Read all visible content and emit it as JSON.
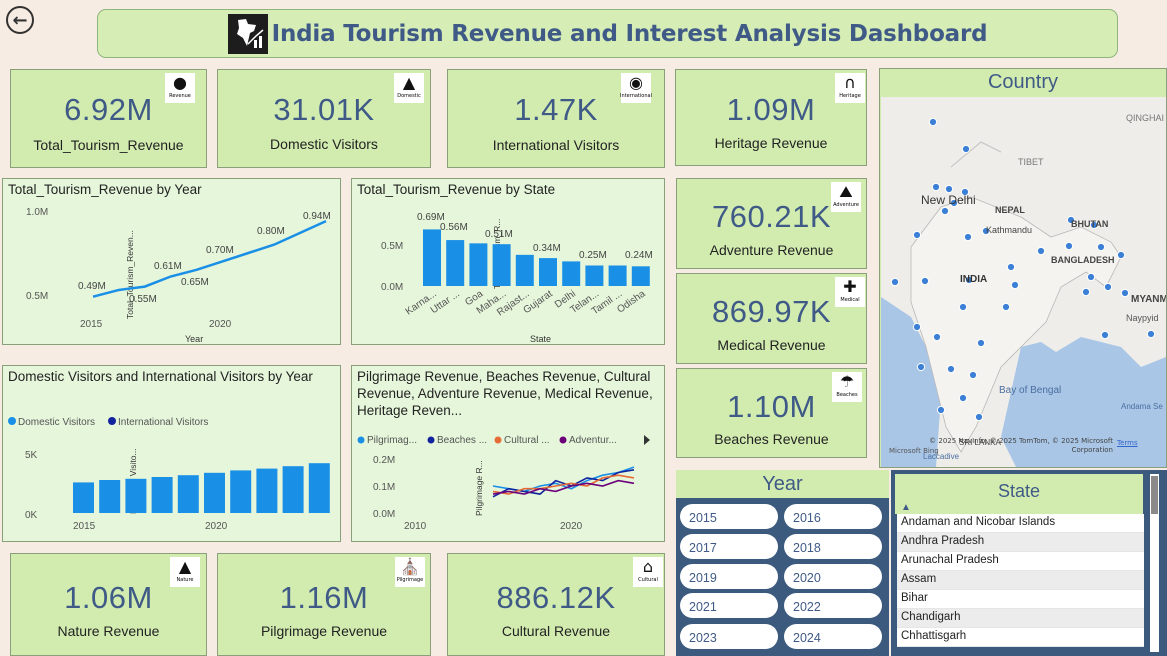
{
  "dashboard_title": "India Tourism Revenue and Interest Analysis Dashboard",
  "kpis": {
    "total_revenue": {
      "value": "6.92M",
      "label": "Total_Tourism_Revenue",
      "badge": "Revenue"
    },
    "domestic": {
      "value": "31.01K",
      "label": "Domestic Visitors",
      "badge": "Domestic"
    },
    "international": {
      "value": "1.47K",
      "label": "International Visitors",
      "badge": "International"
    },
    "heritage": {
      "value": "1.09M",
      "label": "Heritage Revenue",
      "badge": "Heritage"
    },
    "adventure": {
      "value": "760.21K",
      "label": "Adventure Revenue",
      "badge": "Adventure"
    },
    "medical": {
      "value": "869.97K",
      "label": "Medical Revenue",
      "badge": "Medical"
    },
    "beaches": {
      "value": "1.10M",
      "label": "Beaches Revenue",
      "badge": "Beaches"
    },
    "nature": {
      "value": "1.06M",
      "label": "Nature Revenue",
      "badge": "Nature"
    },
    "pilgrimage": {
      "value": "1.16M",
      "label": "Pilgrimage Revenue",
      "badge": "Pilgrimage"
    },
    "cultural": {
      "value": "886.12K",
      "label": "Cultural Revenue",
      "badge": "Cultural"
    }
  },
  "charts": {
    "rev_by_year": {
      "title": "Total_Tourism_Revenue by Year",
      "ylabel": "Total_Tourism_Reven...",
      "xlabel": "Year",
      "yticks": [
        "1.0M",
        "0.5M"
      ],
      "xticks": [
        "2015",
        "2020"
      ],
      "labels": [
        "0.49M",
        "0.55M",
        "0.61M",
        "0.65M",
        "0.70M",
        "0.80M",
        "0.94M"
      ]
    },
    "rev_by_state": {
      "title": "Total_Tourism_Revenue by State",
      "ylabel": "Total_Tourism_R...",
      "xlabel": "State",
      "yticks": [
        "0.5M",
        "0.0M"
      ],
      "labels": [
        "0.69M",
        "0.56M",
        "0.51M",
        "0.34M",
        "0.25M",
        "0.24M"
      ]
    },
    "visitors_by_year": {
      "title": "Domestic Visitors and International Visitors by Year",
      "ylabel": "Domestic Visito...",
      "yticks": [
        "5K",
        "0K"
      ],
      "xticks": [
        "2015",
        "2020"
      ],
      "legend": [
        "Domestic Visitors",
        "International Visitors"
      ]
    },
    "categories": {
      "title": "Pilgrimage Revenue, Beaches Revenue, Cultural Revenue, Adventure Revenue, Medical Revenue, Heritage Reven...",
      "ylabel": "Pilgrimage R...",
      "yticks": [
        "0.2M",
        "0.1M",
        "0.0M"
      ],
      "xticks": [
        "2010",
        "2020"
      ],
      "legend": [
        "Pilgrimag...",
        "Beaches ...",
        "Cultural ...",
        "Adventur..."
      ]
    }
  },
  "chart_data": [
    {
      "type": "line",
      "title": "Total_Tourism_Revenue by Year",
      "xlabel": "Year",
      "ylabel": "Total_Tourism_Reven...",
      "x": [
        2014,
        2015,
        2016,
        2017,
        2018,
        2019,
        2020,
        2021,
        2022,
        2023
      ],
      "values": [
        0.49,
        0.53,
        0.55,
        0.61,
        0.65,
        0.7,
        0.75,
        0.8,
        0.87,
        0.94
      ],
      "ylim": [
        0.4,
        1.0
      ]
    },
    {
      "type": "bar",
      "title": "Total_Tourism_Revenue by State",
      "xlabel": "State",
      "ylabel": "Total_Tourism_R...",
      "categories": [
        "Karna...",
        "Uttar ...",
        "Goa",
        "Maha...",
        "Rajast...",
        "Gujarat",
        "Delhi",
        "Telan...",
        "Tamil ...",
        "Odisha"
      ],
      "values": [
        0.69,
        0.56,
        0.52,
        0.51,
        0.38,
        0.34,
        0.3,
        0.25,
        0.25,
        0.24
      ],
      "ylim": [
        0,
        0.8
      ]
    },
    {
      "type": "bar",
      "title": "Domestic Visitors and International Visitors by Year",
      "ylabel": "Domestic Visito...",
      "categories": [
        "2014",
        "2015",
        "2016",
        "2017",
        "2018",
        "2019",
        "2020",
        "2021",
        "2022",
        "2023"
      ],
      "series": [
        {
          "name": "Domestic Visitors",
          "values": [
            2.55,
            2.75,
            2.85,
            3.0,
            3.15,
            3.35,
            3.55,
            3.7,
            3.9,
            4.15
          ]
        }
      ],
      "ylim": [
        0,
        6
      ]
    },
    {
      "type": "line",
      "title": "Pilgrimage Revenue, Beaches Revenue, Cultural Revenue, Adventure Revenue, Medical Revenue, Heritage Reven...",
      "ylabel": "Pilgrimage R...",
      "x": [
        2014,
        2015,
        2016,
        2017,
        2018,
        2019,
        2020,
        2021,
        2022,
        2023
      ],
      "series": [
        {
          "name": "Pilgrimag...",
          "values": [
            0.1,
            0.09,
            0.08,
            0.1,
            0.11,
            0.09,
            0.12,
            0.14,
            0.15,
            0.17
          ]
        },
        {
          "name": "Beaches ...",
          "values": [
            0.06,
            0.09,
            0.08,
            0.07,
            0.12,
            0.1,
            0.13,
            0.12,
            0.15,
            0.16
          ]
        },
        {
          "name": "Cultural ...",
          "values": [
            0.08,
            0.07,
            0.09,
            0.09,
            0.1,
            0.11,
            0.1,
            0.13,
            0.14,
            0.13
          ]
        },
        {
          "name": "Adventur...",
          "values": [
            0.07,
            0.08,
            0.07,
            0.09,
            0.08,
            0.1,
            0.11,
            0.1,
            0.12,
            0.11
          ]
        }
      ],
      "ylim": [
        0,
        0.2
      ]
    }
  ],
  "map": {
    "title": "Country",
    "places": [
      "QINGHAI",
      "TIBET",
      "New Delhi",
      "NEPAL",
      "Kathmandu",
      "BHUTAN",
      "INDIA",
      "BANGLADESH",
      "MYANM",
      "Naypyid",
      "Bay of Bengal",
      "Andama Se",
      "SRI LANKA",
      "Laccadive"
    ],
    "attribution": "© 2025 NavInfo, © 2025 TomTom, © 2025 Microsoft Corporation",
    "terms": "Terms",
    "logo": "Microsoft Bing"
  },
  "year_slicer": {
    "title": "Year",
    "years": [
      "2015",
      "2016",
      "2017",
      "2018",
      "2019",
      "2020",
      "2021",
      "2022",
      "2023",
      "2024"
    ]
  },
  "state_slicer": {
    "title": "State",
    "states": [
      "Andaman and Nicobar Islands",
      "Andhra Pradesh",
      "Arunachal Pradesh",
      "Assam",
      "Bihar",
      "Chandigarh",
      "Chhattisgarh"
    ]
  },
  "colors": {
    "accent": "#1a8fe6",
    "dark_navy": "#12239e",
    "kpi_bg": "#d2ecb0",
    "panel_bg": "#e6f6db",
    "slicer_bg": "#3c5a7e",
    "value": "#3f5a86"
  }
}
